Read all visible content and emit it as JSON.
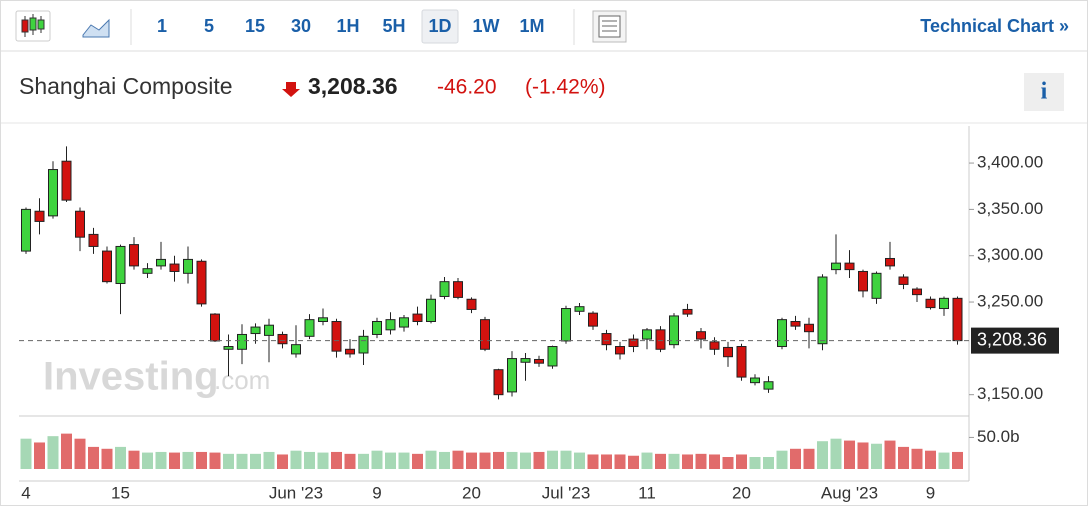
{
  "toolbar": {
    "intervals": [
      "1",
      "5",
      "15",
      "30",
      "1H",
      "5H",
      "1D",
      "1W",
      "1M"
    ],
    "selected": "1D",
    "link": "Technical Chart »"
  },
  "header": {
    "name": "Shanghai Composite",
    "price": "3,208.36",
    "change": "-46.20",
    "change_pct": "(-1.42%)",
    "info": "i"
  },
  "watermark": {
    "brand": "Investing",
    "suffix": ".com"
  },
  "chart_data": {
    "type": "candlestick",
    "categories": [
      "4",
      null,
      null,
      null,
      null,
      null,
      null,
      "15",
      null,
      null,
      null,
      null,
      null,
      null,
      null,
      null,
      null,
      null,
      null,
      null,
      "Jun '23",
      null,
      null,
      null,
      null,
      null,
      "9",
      null,
      null,
      null,
      null,
      null,
      null,
      "20",
      null,
      null,
      null,
      null,
      null,
      null,
      "Jul '23",
      null,
      null,
      null,
      null,
      null,
      "11",
      null,
      null,
      null,
      null,
      null,
      null,
      "20",
      null,
      null,
      null,
      null,
      null,
      null,
      null,
      "Aug '23",
      null,
      null,
      null,
      null,
      null,
      "9",
      null,
      null
    ],
    "open": [
      3305,
      3348,
      3343,
      3402,
      3348,
      3323,
      3305,
      3270,
      3312,
      3281,
      3289,
      3291,
      3281,
      3294,
      3237,
      3199,
      3199,
      3216,
      3214,
      3215,
      3194,
      3213,
      3229,
      3229,
      3199,
      3195,
      3215,
      3220,
      3223,
      3237,
      3229,
      3256,
      3272,
      3253,
      3231,
      3177,
      3153,
      3185,
      3188,
      3181,
      3208,
      3240,
      3238,
      3216,
      3202,
      3210,
      3210,
      3220,
      3204,
      3242,
      3218,
      3207,
      3201,
      3202,
      3163,
      3156,
      3202,
      3229,
      3226,
      3205,
      3285,
      3292,
      3283,
      3254,
      3297,
      3277,
      3264,
      3253,
      3243,
      3254
    ],
    "high": [
      3352,
      3362,
      3402,
      3418,
      3352,
      3330,
      3310,
      3312,
      3320,
      3292,
      3315,
      3300,
      3310,
      3296,
      3238,
      3215,
      3226,
      3227,
      3232,
      3218,
      3225,
      3237,
      3243,
      3232,
      3210,
      3220,
      3233,
      3239,
      3236,
      3245,
      3258,
      3277,
      3276,
      3255,
      3234,
      3178,
      3197,
      3195,
      3192,
      3203,
      3246,
      3249,
      3240,
      3220,
      3207,
      3215,
      3222,
      3224,
      3238,
      3248,
      3222,
      3212,
      3207,
      3205,
      3172,
      3170,
      3233,
      3235,
      3233,
      3280,
      3323,
      3306,
      3285,
      3283,
      3315,
      3280,
      3266,
      3256,
      3256,
      3256
    ],
    "low": [
      3302,
      3323,
      3340,
      3358,
      3305,
      3302,
      3270,
      3237,
      3285,
      3276,
      3285,
      3272,
      3270,
      3245,
      3207,
      3170,
      3183,
      3205,
      3185,
      3200,
      3190,
      3210,
      3225,
      3190,
      3190,
      3182,
      3211,
      3215,
      3218,
      3225,
      3227,
      3253,
      3253,
      3238,
      3197,
      3145,
      3148,
      3165,
      3180,
      3178,
      3205,
      3236,
      3220,
      3198,
      3188,
      3196,
      3199,
      3196,
      3200,
      3234,
      3200,
      3193,
      3180,
      3165,
      3160,
      3152,
      3199,
      3220,
      3200,
      3198,
      3280,
      3276,
      3255,
      3248,
      3285,
      3264,
      3250,
      3242,
      3235,
      3204
    ],
    "close": [
      3350,
      3337,
      3393,
      3360,
      3320,
      3310,
      3272,
      3310,
      3289,
      3286,
      3296,
      3283,
      3296,
      3248,
      3208,
      3202,
      3215,
      3223,
      3225,
      3205,
      3204,
      3231,
      3233,
      3197,
      3194,
      3213,
      3229,
      3231,
      3233,
      3229,
      3253,
      3272,
      3255,
      3242,
      3199,
      3150,
      3189,
      3189,
      3184,
      3202,
      3243,
      3245,
      3224,
      3204,
      3194,
      3202,
      3220,
      3199,
      3235,
      3237,
      3210,
      3199,
      3191,
      3169,
      3168,
      3164,
      3231,
      3224,
      3218,
      3277,
      3292,
      3285,
      3262,
      3281,
      3289,
      3269,
      3258,
      3244,
      3254,
      3208.36
    ],
    "volume": [
      48,
      42,
      52,
      56,
      48,
      35,
      32,
      35,
      29,
      26,
      27,
      26,
      27,
      27,
      26,
      24,
      24,
      24,
      27,
      23,
      29,
      27,
      26,
      27,
      24,
      24,
      29,
      26,
      26,
      24,
      29,
      27,
      29,
      26,
      26,
      27,
      27,
      26,
      27,
      29,
      29,
      26,
      23,
      23,
      23,
      21,
      26,
      24,
      24,
      23,
      24,
      23,
      19,
      23,
      19,
      19,
      29,
      32,
      32,
      44,
      48,
      45,
      42,
      40,
      45,
      35,
      32,
      29,
      26,
      27
    ],
    "up_color": "#3fd33f",
    "down_color": "#d2120f",
    "volume_up_color": "#a6d8b5",
    "volume_down_color": "#e16b6b",
    "ylim": [
      3127,
      3440
    ],
    "yticks": [
      {
        "value": 3150,
        "label": "3,150.00"
      },
      {
        "value": 3250,
        "label": "3,250.00"
      },
      {
        "value": 3300,
        "label": "3,300.00"
      },
      {
        "value": 3350,
        "label": "3,350.00"
      },
      {
        "value": 3400,
        "label": "3,400.00"
      }
    ],
    "volume_lim": [
      0,
      76
    ],
    "volume_ticks": [
      {
        "value": 50,
        "label": "50.0b"
      }
    ],
    "grid": false
  }
}
